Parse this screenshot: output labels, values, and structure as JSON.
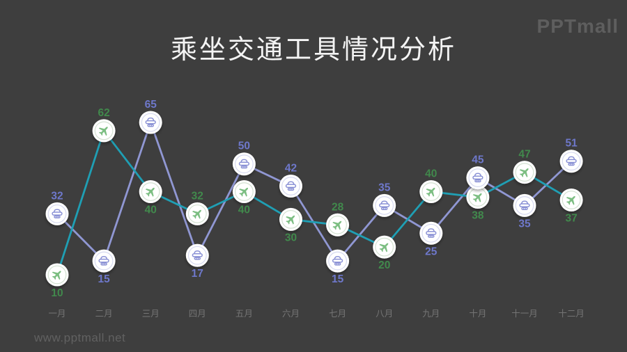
{
  "page": {
    "title": "乘坐交通工具情况分析",
    "logo": "PPTmall",
    "footer_url": "www.pptmall.net",
    "background": "#3e3e3e"
  },
  "colors": {
    "title_text": "#f4f4f4",
    "logo_text": "#5e5e5e",
    "footer_text": "#616161",
    "axis_text": "#757575",
    "marker_fill": "#ffffff",
    "plane_line": "#1f9fb4",
    "plane_icon": "#7cbe82",
    "plane_ring": "#d3e1d1",
    "plane_label": "#41894c",
    "car_line": "#9097d3",
    "car_icon": "#8a91d5",
    "car_ring": "#d6d9f0",
    "car_label": "#6e78cb"
  },
  "chart_data": {
    "type": "line",
    "title": "乘坐交通工具情况分析",
    "categories": [
      "一月",
      "二月",
      "三月",
      "四月",
      "五月",
      "六月",
      "七月",
      "八月",
      "九月",
      "十月",
      "十一月",
      "十二月"
    ],
    "series": [
      {
        "name": "plane",
        "icon": "plane-icon",
        "values": [
          10,
          62,
          40,
          32,
          40,
          30,
          28,
          20,
          40,
          38,
          47,
          37
        ]
      },
      {
        "name": "car",
        "icon": "car-icon",
        "values": [
          32,
          15,
          65,
          17,
          50,
          42,
          15,
          35,
          25,
          45,
          35,
          51
        ]
      }
    ],
    "xlabel": "",
    "ylabel": "",
    "ylim": [
      0,
      70
    ],
    "grid": false,
    "legend": "none",
    "value_labels": "on",
    "value_label_rule": "larger value labeled above marker, smaller below"
  }
}
